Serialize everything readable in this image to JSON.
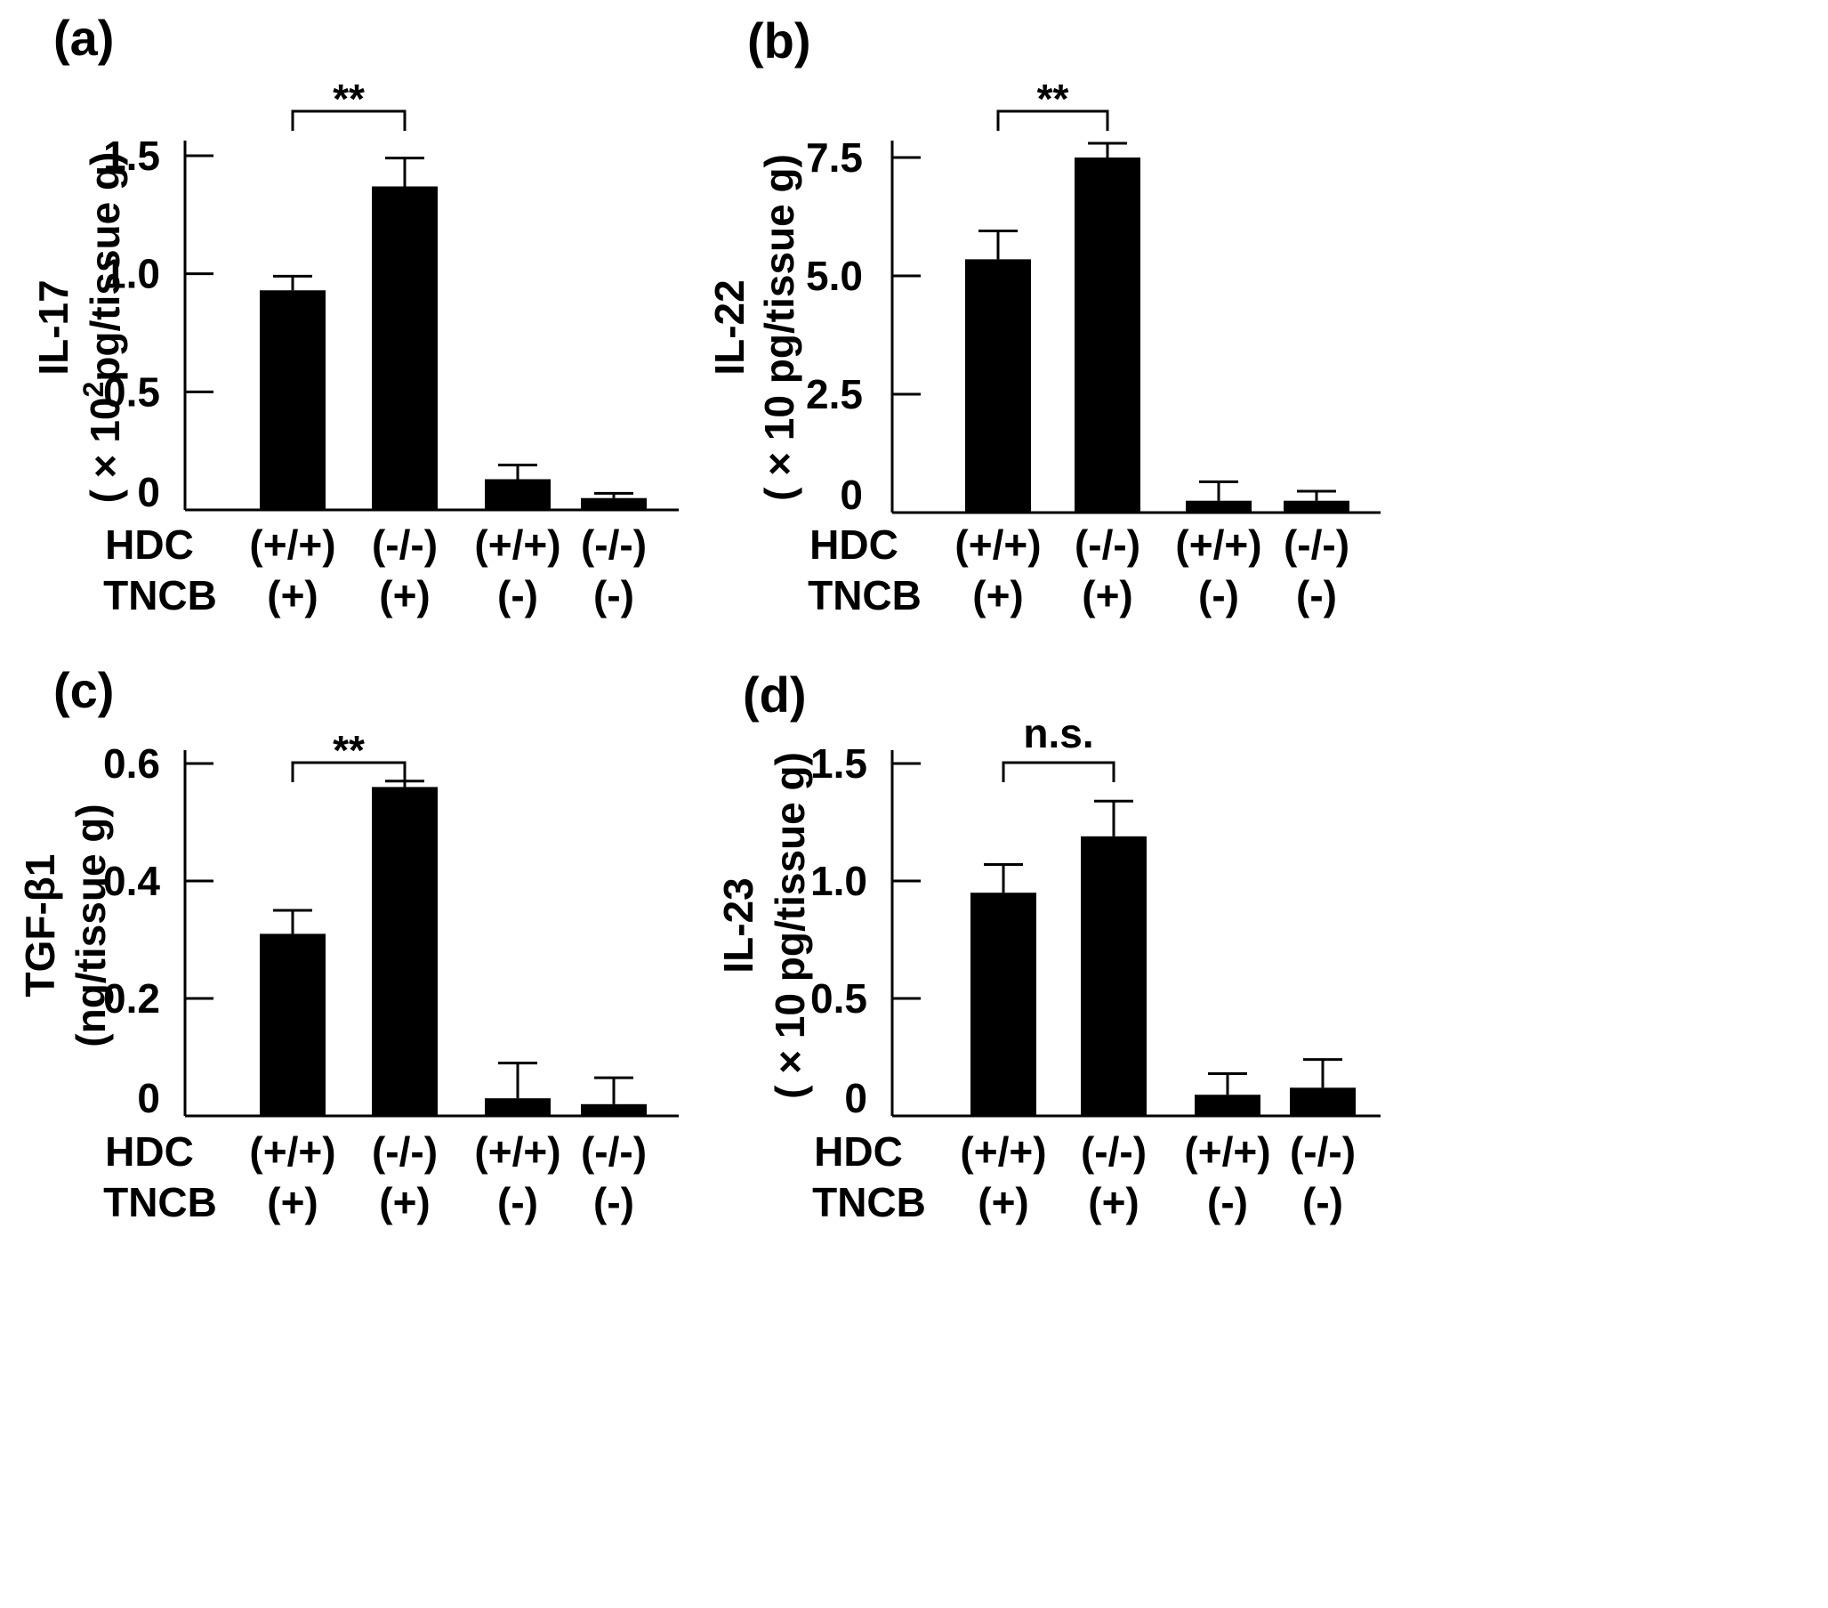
{
  "row_labels": {
    "hdc": "HDC",
    "tncb": "TNCB"
  },
  "chart_data": [
    {
      "type": "bar",
      "panel": "(a)",
      "ylabel_main": "IL-17",
      "ylabel_unit_pre": "( × 10",
      "ylabel_unit_sup": "2",
      "ylabel_unit_post": "pg/tissue g)",
      "ylim": [
        0,
        1.5
      ],
      "yticks": [
        0,
        0.5,
        1.0,
        1.5
      ],
      "ytick_labels": [
        "0",
        "0.5",
        "1.0",
        "1.5"
      ],
      "categories": [
        "HDC (+/+) TNCB (+)",
        "HDC (-/-) TNCB (+)",
        "HDC (+/+) TNCB (-)",
        "HDC (-/-) TNCB (-)"
      ],
      "hdc_labels": [
        "(+/+)",
        "(-/-)",
        "(+/+)",
        "(-/-)"
      ],
      "tncb_labels": [
        "(+)",
        "(+)",
        "(-)",
        "(-)"
      ],
      "values": [
        0.93,
        1.37,
        0.13,
        0.05
      ],
      "errors": [
        0.06,
        0.12,
        0.06,
        0.02
      ],
      "significance": {
        "pair": [
          0,
          1
        ],
        "label": "**"
      }
    },
    {
      "type": "bar",
      "panel": "(b)",
      "ylabel_main": "IL-22",
      "ylabel_unit_pre": "( × 10 pg/tissue g)",
      "ylabel_unit_sup": "",
      "ylabel_unit_post": "",
      "ylim": [
        0,
        7.5
      ],
      "yticks": [
        0,
        2.5,
        5.0,
        7.5
      ],
      "ytick_labels": [
        "0",
        "2.5",
        "5.0",
        "7.5"
      ],
      "categories": [
        "HDC (+/+) TNCB (+)",
        "HDC (-/-) TNCB (+)",
        "HDC (+/+) TNCB (-)",
        "HDC (-/-) TNCB (-)"
      ],
      "hdc_labels": [
        "(+/+)",
        "(-/-)",
        "(+/+)",
        "(-/-)"
      ],
      "tncb_labels": [
        "(+)",
        "(+)",
        "(-)",
        "(-)"
      ],
      "values": [
        5.35,
        7.5,
        0.25,
        0.25
      ],
      "errors": [
        0.6,
        0.3,
        0.4,
        0.2
      ],
      "significance": {
        "pair": [
          0,
          1
        ],
        "label": "**"
      }
    },
    {
      "type": "bar",
      "panel": "(c)",
      "ylabel_main": "TGF-β1",
      "ylabel_unit_pre": "(ng/tissue g)",
      "ylabel_unit_sup": "",
      "ylabel_unit_post": "",
      "ylim": [
        0,
        0.6
      ],
      "yticks": [
        0,
        0.2,
        0.4,
        0.6
      ],
      "ytick_labels": [
        "0",
        "0.2",
        "0.4",
        "0.6"
      ],
      "categories": [
        "HDC (+/+) TNCB (+)",
        "HDC (-/-) TNCB (+)",
        "HDC (+/+) TNCB (-)",
        "HDC (-/-) TNCB (-)"
      ],
      "hdc_labels": [
        "(+/+)",
        "(-/-)",
        "(+/+)",
        "(-/-)"
      ],
      "tncb_labels": [
        "(+)",
        "(+)",
        "(-)",
        "(-)"
      ],
      "values": [
        0.31,
        0.56,
        0.03,
        0.02
      ],
      "errors": [
        0.04,
        0.01,
        0.06,
        0.045
      ],
      "significance": {
        "pair": [
          0,
          1
        ],
        "label": "**"
      }
    },
    {
      "type": "bar",
      "panel": "(d)",
      "ylabel_main": "IL-23",
      "ylabel_unit_pre": "( × 10 pg/tissue g)",
      "ylabel_unit_sup": "",
      "ylabel_unit_post": "",
      "ylim": [
        0,
        1.5
      ],
      "yticks": [
        0,
        0.5,
        1.0,
        1.5
      ],
      "ytick_labels": [
        "0",
        "0.5",
        "1.0",
        "1.5"
      ],
      "categories": [
        "HDC (+/+) TNCB (+)",
        "HDC (-/-) TNCB (+)",
        "HDC (+/+) TNCB (-)",
        "HDC (-/-) TNCB (-)"
      ],
      "hdc_labels": [
        "(+/+)",
        "(-/-)",
        "(+/+)",
        "(-/-)"
      ],
      "tncb_labels": [
        "(+)",
        "(+)",
        "(-)",
        "(-)"
      ],
      "values": [
        0.95,
        1.19,
        0.09,
        0.12
      ],
      "errors": [
        0.12,
        0.15,
        0.09,
        0.12
      ],
      "significance": {
        "pair": [
          0,
          1
        ],
        "label": "n.s."
      }
    }
  ]
}
